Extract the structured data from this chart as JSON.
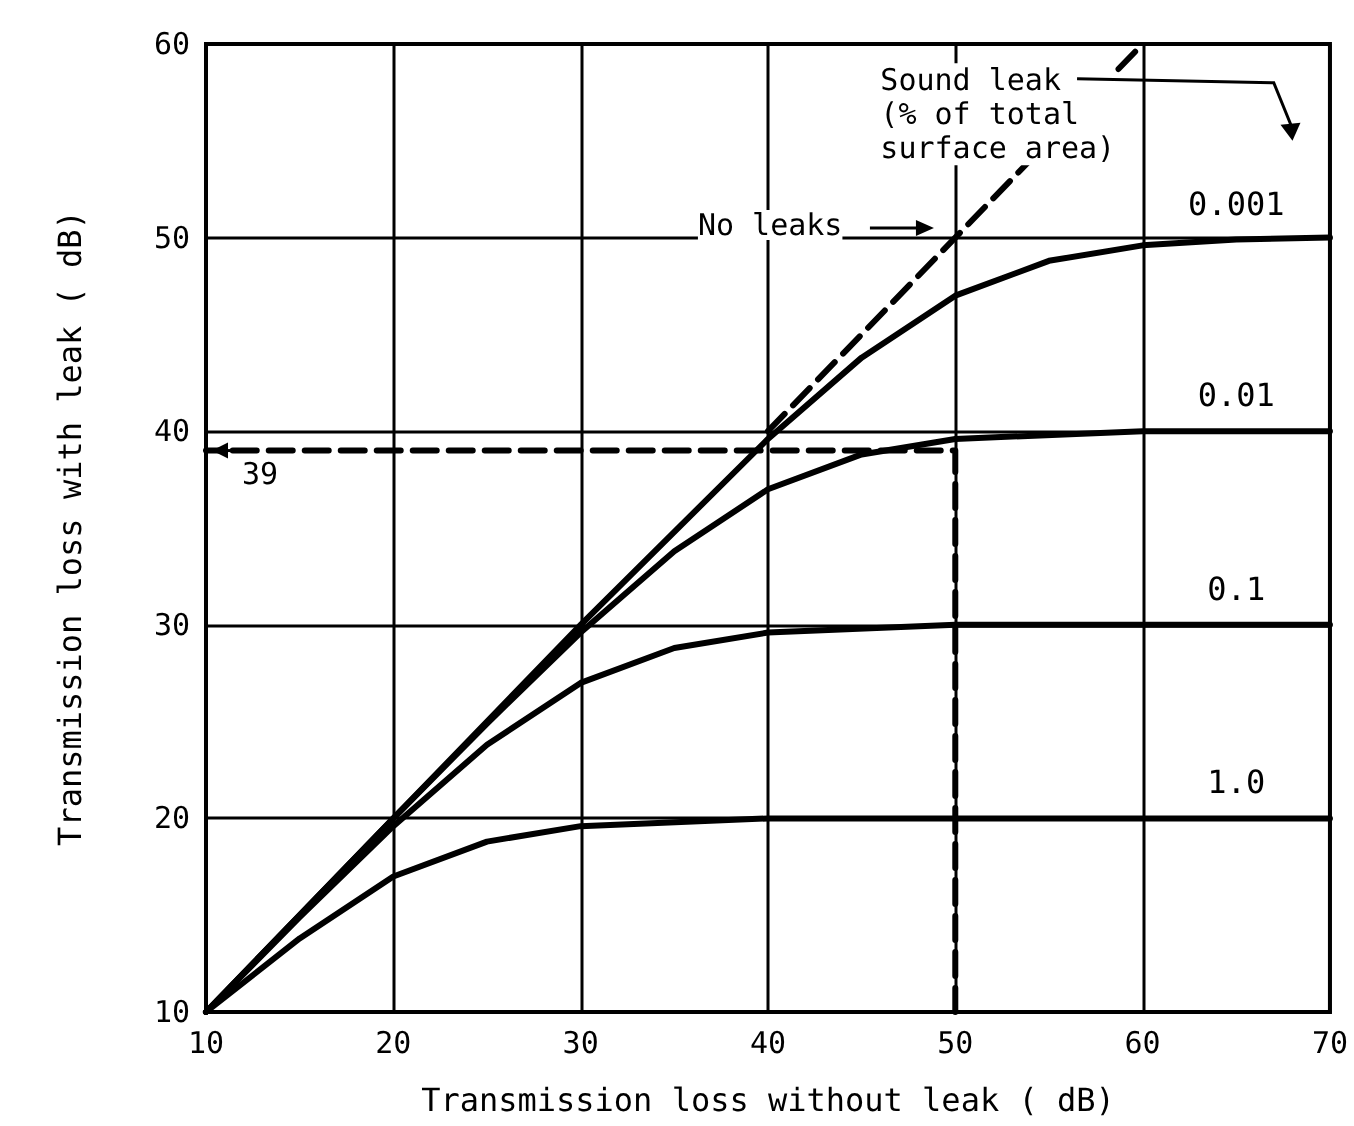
{
  "chart_data": {
    "type": "line",
    "xlabel": "Transmission loss without leak ( dB)",
    "ylabel": "Transmission loss with leak ( dB)",
    "legend_title": "Sound leak\n(% of total\nsurface area)",
    "series": [
      {
        "name": "0.001",
        "color": "#000000",
        "x": [
          10,
          20,
          30,
          40,
          45,
          50,
          55,
          60,
          65,
          70
        ],
        "values": [
          10,
          20,
          30,
          39.6,
          43.8,
          47,
          48.8,
          49.6,
          49.9,
          50
        ]
      },
      {
        "name": "0.01",
        "color": "#000000",
        "x": [
          10,
          20,
          25,
          30,
          35,
          40,
          45,
          50,
          60,
          65,
          70
        ],
        "values": [
          10,
          20,
          24.9,
          29.6,
          33.8,
          37,
          38.8,
          39.6,
          40,
          40,
          40
        ]
      },
      {
        "name": "0.1",
        "color": "#000000",
        "x": [
          10,
          15,
          20,
          25,
          30,
          35,
          40,
          50,
          60,
          65,
          70
        ],
        "values": [
          10,
          14.9,
          19.6,
          23.8,
          27,
          28.8,
          29.6,
          30,
          30,
          30,
          30
        ]
      },
      {
        "name": "1.0",
        "color": "#000000",
        "x": [
          10,
          15,
          20,
          25,
          30,
          40,
          50,
          60,
          65,
          70
        ],
        "values": [
          10,
          13.8,
          17,
          18.8,
          19.6,
          20,
          20,
          20,
          20,
          20
        ]
      },
      {
        "color": "#000000",
        "line_style": "dashed",
        "x": [
          40,
          60
        ],
        "values": [
          40,
          60
        ]
      },
      {
        "color": "#000000",
        "line_style": "dashed",
        "x": [
          50,
          50,
          10
        ],
        "values": [
          10,
          39,
          39
        ]
      }
    ],
    "annotations": [
      "No leaks",
      {
        "text": "39",
        "x": 10,
        "y": 39
      }
    ],
    "xlim": [
      10,
      70
    ],
    "xticks": [
      10,
      20,
      30,
      40,
      50,
      60,
      70
    ],
    "ylim": [
      10,
      60
    ],
    "yticks": [
      10,
      20,
      30,
      40,
      50,
      60
    ],
    "grid": true,
    "marker": "none",
    "line_style": "solid"
  }
}
